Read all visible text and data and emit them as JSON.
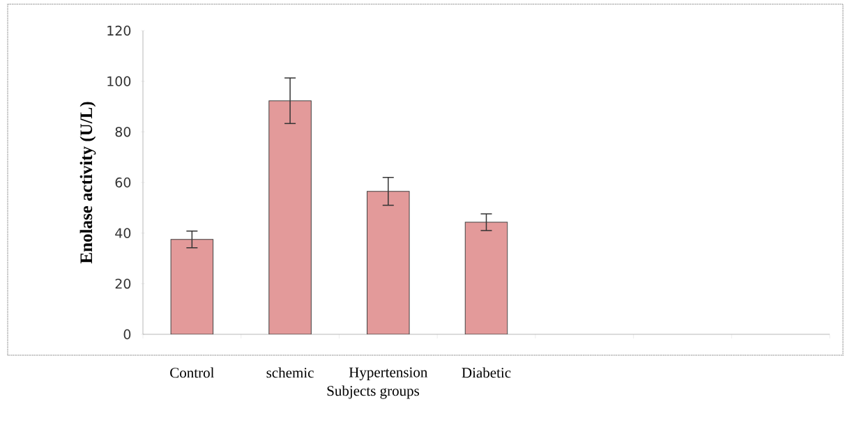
{
  "chart_data": {
    "type": "bar",
    "xlabel": "Subjects groups",
    "ylabel": "Enolase activity (U/L)",
    "categories": [
      "Control",
      "schemic",
      "Hypertension",
      "Diabetic",
      null,
      null,
      null
    ],
    "values": [
      37.5,
      92.3,
      56.5,
      44.3,
      null,
      null,
      null
    ],
    "errors": [
      3.3,
      9,
      5.5,
      3.3,
      null,
      null,
      null
    ],
    "color": "#e39a9a",
    "ylim": [
      0,
      120
    ],
    "yticks": [
      0,
      20,
      40,
      60,
      80,
      100,
      120
    ],
    "grid": false,
    "legend": false
  }
}
